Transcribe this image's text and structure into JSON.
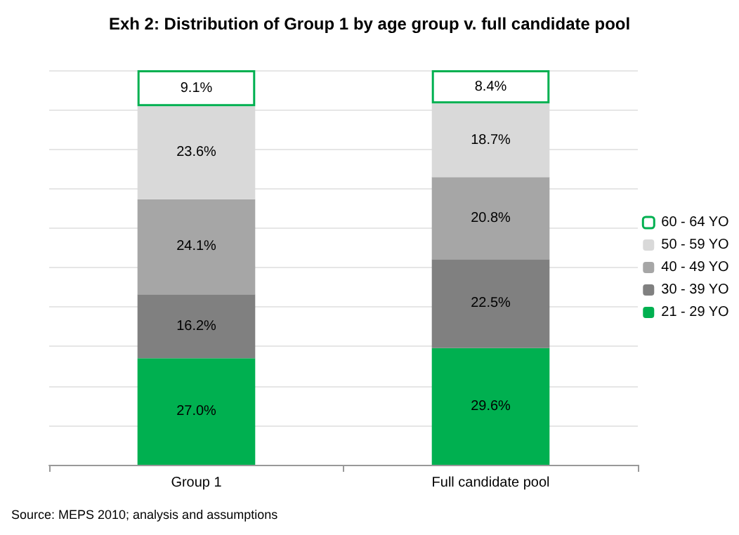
{
  "chart_data": {
    "type": "bar",
    "stacked": true,
    "title": "Exh 2: Distribution of Group 1 by age group v. full candidate pool",
    "categories": [
      "Group 1",
      "Full candidate pool"
    ],
    "series": [
      {
        "name": "21 - 29 YO",
        "color": "#00b050",
        "values": [
          27.0,
          29.6
        ],
        "value_labels": [
          "27.0%",
          "29.6%"
        ]
      },
      {
        "name": "30 - 39 YO",
        "color": "#808080",
        "values": [
          16.2,
          22.5
        ],
        "value_labels": [
          "16.2%",
          "22.5%"
        ]
      },
      {
        "name": "40 - 49 YO",
        "color": "#a6a6a6",
        "values": [
          24.1,
          20.8
        ],
        "value_labels": [
          "24.1%",
          "20.8%"
        ]
      },
      {
        "name": "50 - 59 YO",
        "color": "#d9d9d9",
        "values": [
          23.6,
          18.7
        ],
        "value_labels": [
          "23.6%",
          "18.7%"
        ]
      },
      {
        "name": "60 - 64 YO",
        "color": "#ffffff",
        "values": [
          9.1,
          8.4
        ],
        "value_labels": [
          "9.1%",
          "8.4%"
        ]
      }
    ],
    "ylim": [
      0,
      100
    ],
    "yticks": [
      {
        "value": 0,
        "label": null
      },
      {
        "value": 10,
        "label": null
      },
      {
        "value": 20,
        "label": null
      },
      {
        "value": 30,
        "label": null
      },
      {
        "value": 40,
        "label": null
      },
      {
        "value": 50,
        "label": null
      },
      {
        "value": 60,
        "label": null
      },
      {
        "value": 70,
        "label": null
      },
      {
        "value": 80,
        "label": null
      },
      {
        "value": 90,
        "label": null
      },
      {
        "value": 100,
        "label": null
      }
    ],
    "tick_labels": "x",
    "grid": "y",
    "legend": "right",
    "annotations": [
      "Source: MEPS 2010; analysis and assumptions"
    ]
  }
}
